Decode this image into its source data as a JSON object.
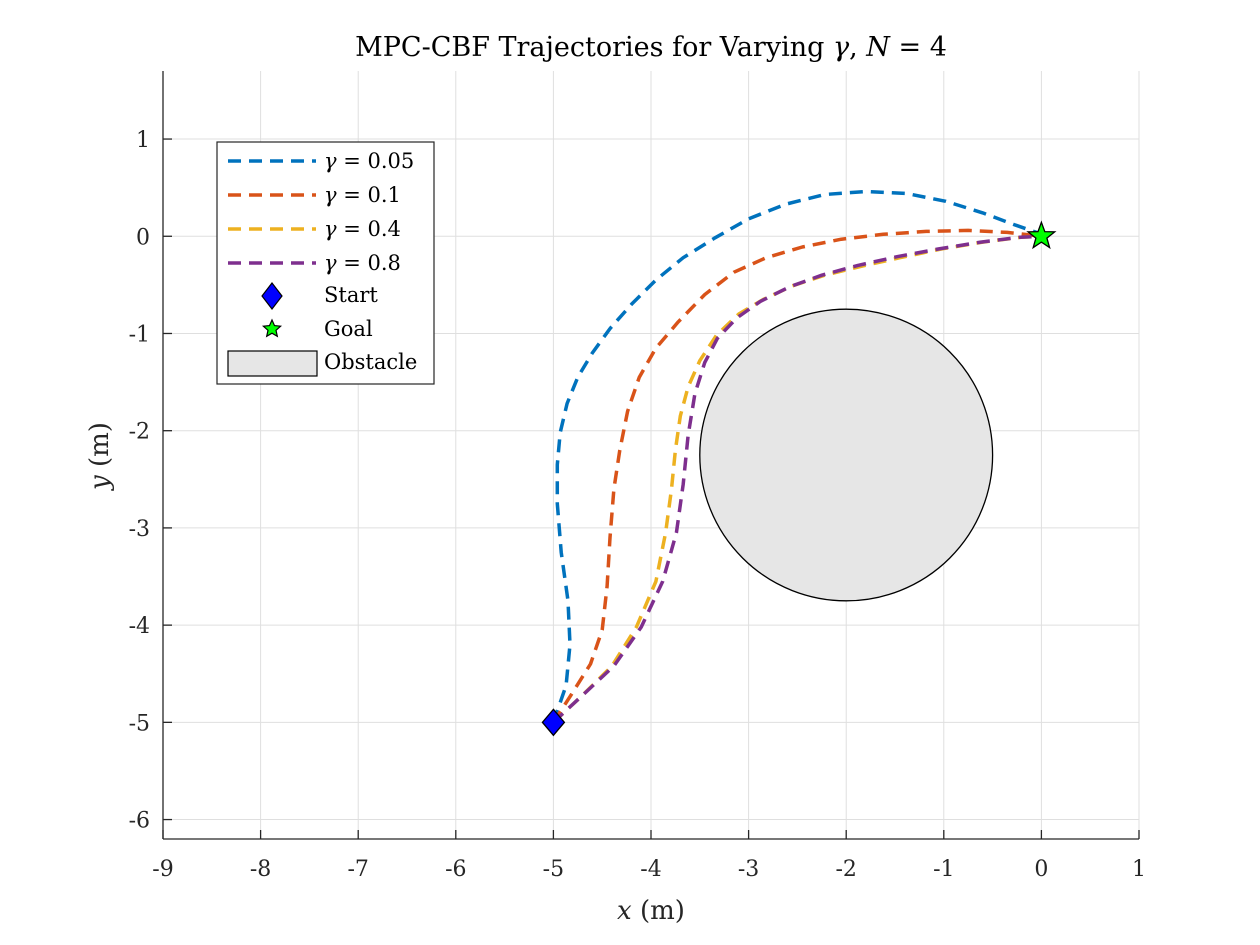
{
  "chart_data": {
    "type": "line",
    "title": "MPC-CBF Trajectories for Varying γ, N = 4",
    "title_parts": {
      "prefix": "MPC-CBF Trajectories for Varying ",
      "gamma": "γ",
      "sep": ", ",
      "n": "N",
      "eq": " = 4"
    },
    "xlabel_parts": {
      "var": "x",
      "unit": " (m)"
    },
    "ylabel_parts": {
      "var": "y",
      "unit": " (m)"
    },
    "xlim": [
      -9,
      1
    ],
    "ylim": [
      -6.2,
      1.7
    ],
    "x_ticks": [
      -9,
      -8,
      -7,
      -6,
      -5,
      -4,
      -3,
      -2,
      -1,
      0,
      1
    ],
    "x_tick_labels": [
      "-9",
      "-8",
      "-7",
      "-6",
      "-5",
      "-4",
      "-3",
      "-2",
      "-1",
      "0",
      "1"
    ],
    "y_ticks": [
      1,
      0,
      -1,
      -2,
      -3,
      -4,
      -5,
      -6
    ],
    "y_tick_labels": [
      "1",
      "0",
      "-1",
      "-2",
      "-3",
      "-4",
      "-5",
      "-6"
    ],
    "grid": true,
    "legend_position": "top-left",
    "series": [
      {
        "name": "γ = 0.05",
        "legend_symbol": "γ",
        "legend_value": " = 0.05",
        "color": "#0072BD",
        "style": "dashed",
        "x": [
          -5.0,
          -4.87,
          -4.83,
          -4.85,
          -4.92,
          -4.96,
          -4.96,
          -4.93,
          -4.86,
          -4.75,
          -4.6,
          -4.42,
          -4.2,
          -3.95,
          -3.67,
          -3.35,
          -3.0,
          -2.62,
          -2.22,
          -1.8,
          -1.38,
          -0.98,
          -0.6,
          -0.28,
          -0.05,
          0.0
        ],
        "y": [
          -5.0,
          -4.62,
          -4.2,
          -3.75,
          -3.25,
          -2.75,
          -2.35,
          -2.02,
          -1.72,
          -1.45,
          -1.2,
          -0.95,
          -0.7,
          -0.45,
          -0.22,
          -0.02,
          0.18,
          0.33,
          0.43,
          0.46,
          0.44,
          0.36,
          0.24,
          0.12,
          0.04,
          0.0
        ]
      },
      {
        "name": "γ = 0.1",
        "legend_symbol": "γ",
        "legend_value": " = 0.1",
        "color": "#D95319",
        "style": "dashed",
        "x": [
          -5.0,
          -4.82,
          -4.62,
          -4.5,
          -4.45,
          -4.42,
          -4.38,
          -4.32,
          -4.24,
          -4.12,
          -3.95,
          -3.72,
          -3.45,
          -3.15,
          -2.82,
          -2.45,
          -2.05,
          -1.62,
          -1.18,
          -0.75,
          -0.35,
          0.0
        ],
        "y": [
          -5.0,
          -4.72,
          -4.4,
          -4.05,
          -3.6,
          -3.1,
          -2.6,
          -2.2,
          -1.8,
          -1.45,
          -1.15,
          -0.88,
          -0.6,
          -0.37,
          -0.22,
          -0.11,
          -0.03,
          0.02,
          0.05,
          0.06,
          0.04,
          0.0
        ]
      },
      {
        "name": "γ = 0.4",
        "legend_symbol": "γ",
        "legend_value": " = 0.4",
        "color": "#EDB120",
        "style": "dashed",
        "x": [
          -5.0,
          -4.7,
          -4.4,
          -4.15,
          -3.95,
          -3.85,
          -3.79,
          -3.75,
          -3.7,
          -3.62,
          -3.5,
          -3.33,
          -3.1,
          -2.85,
          -2.55,
          -2.22,
          -1.85,
          -1.45,
          -1.02,
          -0.6,
          -0.2,
          0.0
        ],
        "y": [
          -5.0,
          -4.72,
          -4.42,
          -4.02,
          -3.55,
          -3.05,
          -2.6,
          -2.2,
          -1.85,
          -1.55,
          -1.28,
          -1.02,
          -0.8,
          -0.65,
          -0.51,
          -0.4,
          -0.31,
          -0.22,
          -0.13,
          -0.06,
          -0.01,
          0.0
        ]
      },
      {
        "name": "γ = 0.8",
        "legend_symbol": "γ",
        "legend_value": " = 0.8",
        "color": "#7E2F8E",
        "style": "dashed",
        "x": [
          -5.0,
          -4.7,
          -4.38,
          -4.1,
          -3.88,
          -3.74,
          -3.67,
          -3.62,
          -3.55,
          -3.45,
          -3.32,
          -3.12,
          -2.88,
          -2.58,
          -2.25,
          -1.88,
          -1.48,
          -1.05,
          -0.62,
          -0.22,
          0.0
        ],
        "y": [
          -5.0,
          -4.72,
          -4.42,
          -4.02,
          -3.55,
          -3.05,
          -2.55,
          -2.05,
          -1.62,
          -1.3,
          -1.05,
          -0.84,
          -0.67,
          -0.52,
          -0.4,
          -0.3,
          -0.21,
          -0.13,
          -0.06,
          -0.01,
          0.0
        ]
      }
    ],
    "markers": [
      {
        "name": "Start",
        "x": -5,
        "y": -5,
        "shape": "diamond",
        "color": "#0000FF"
      },
      {
        "name": "Goal",
        "x": 0,
        "y": 0,
        "shape": "pentagram",
        "color": "#00FF00"
      }
    ],
    "obstacle": {
      "name": "Obstacle",
      "cx": -2,
      "cy": -2.25,
      "r": 1.5,
      "fill": "#E6E6E6"
    }
  }
}
